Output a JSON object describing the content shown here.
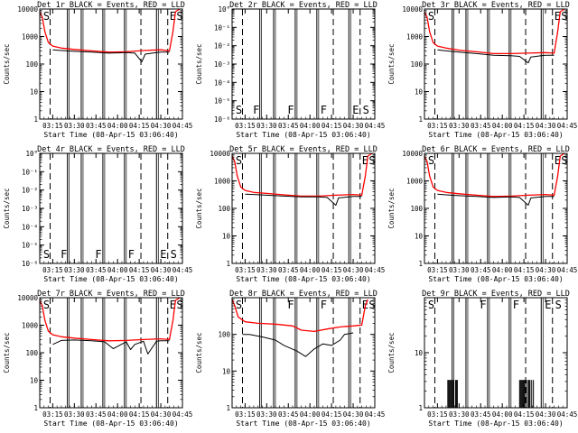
{
  "chart_data": [
    {
      "type": "line",
      "title": "Det 1r BLACK = Events, RED = LLD",
      "xlabel": "Start Time (08-Apr-15 03:06:40)",
      "ylabel": "Counts/sec",
      "yscale": "log",
      "ylim": [
        1,
        10000
      ],
      "xlim": [
        3.1,
        4.75
      ],
      "yticks": [
        "1",
        "10",
        "100",
        "1000",
        "10000"
      ],
      "xticks": [
        "03:15",
        "03:30",
        "03:45",
        "04:00",
        "04:15",
        "04:30",
        "04:45"
      ],
      "solid_markers": [
        3.42,
        3.58,
        3.83,
        4.08,
        4.45
      ],
      "dashed_markers": [
        3.22,
        4.27,
        4.58
      ],
      "segment_labels": [
        {
          "text": "S",
          "x": 3.12
        },
        {
          "text": "E",
          "x": 4.58
        },
        {
          "text": "S",
          "x": 4.66
        }
      ],
      "series": [
        {
          "name": "LLD",
          "color": "#ff0000",
          "x": [
            3.1,
            3.13,
            3.16,
            3.2,
            3.25,
            3.35,
            3.5,
            3.7,
            3.9,
            4.1,
            4.3,
            4.5,
            4.6,
            4.64,
            4.67,
            4.72
          ],
          "y": [
            8000,
            5000,
            1500,
            600,
            450,
            380,
            340,
            300,
            270,
            280,
            310,
            330,
            300,
            1500,
            8000,
            10000
          ]
        },
        {
          "name": "Events",
          "color": "#000000",
          "x": [
            3.25,
            3.35,
            3.5,
            3.7,
            3.9,
            4.1,
            4.2,
            4.28,
            4.32,
            4.45,
            4.5,
            4.6
          ],
          "y": [
            330,
            310,
            290,
            270,
            250,
            260,
            250,
            120,
            230,
            260,
            270,
            270
          ]
        }
      ]
    },
    {
      "type": "line",
      "title": "Det 2r BLACK = Events, RED = LLD",
      "xlabel": "Start Time (08-Apr-15 03:06:40)",
      "ylabel": "Counts/sec",
      "yscale": "log",
      "ylim": [
        1e-06,
        1
      ],
      "xlim": [
        3.1,
        4.75
      ],
      "yticks": [
        "10°",
        "10⁻¹",
        "10⁻²",
        "10⁻³",
        "10⁻⁴",
        "10⁻⁵",
        "10⁻⁶"
      ],
      "xticks": [
        "03:15",
        "03:30",
        "03:45",
        "04:00",
        "04:15",
        "04:30",
        "04:45"
      ],
      "solid_markers": [
        3.42,
        3.58,
        3.83,
        4.08,
        4.45
      ],
      "dashed_markers": [
        3.22,
        4.27,
        4.58
      ],
      "segment_labels": [
        {
          "text": "S",
          "x": 3.12
        },
        {
          "text": "F",
          "x": 3.32
        },
        {
          "text": "F",
          "x": 3.72
        },
        {
          "text": "F",
          "x": 4.1
        },
        {
          "text": "E",
          "x": 4.47
        },
        {
          "text": "S",
          "x": 4.59
        }
      ],
      "series": []
    },
    {
      "type": "line",
      "title": "Det 3r BLACK = Events, RED = LLD",
      "xlabel": "Start Time (08-Apr-15 03:06:40)",
      "ylabel": "Counts/sec",
      "yscale": "log",
      "ylim": [
        1,
        10000
      ],
      "xlim": [
        3.1,
        4.75
      ],
      "yticks": [
        "1",
        "10",
        "100",
        "1000",
        "10000"
      ],
      "xticks": [
        "03:15",
        "03:30",
        "03:45",
        "04:00",
        "04:15",
        "04:30",
        "04:45"
      ],
      "solid_markers": [
        3.42,
        3.58,
        3.83,
        4.08,
        4.45
      ],
      "dashed_markers": [
        3.22,
        4.27,
        4.58
      ],
      "segment_labels": [
        {
          "text": "S",
          "x": 3.12
        },
        {
          "text": "E",
          "x": 4.58
        },
        {
          "text": "S",
          "x": 4.66
        }
      ],
      "series": [
        {
          "name": "LLD",
          "color": "#ff0000",
          "x": [
            3.1,
            3.13,
            3.16,
            3.2,
            3.25,
            3.35,
            3.5,
            3.7,
            3.9,
            4.1,
            4.3,
            4.5,
            4.6,
            4.64,
            4.67,
            4.72
          ],
          "y": [
            8000,
            5000,
            1500,
            600,
            450,
            380,
            320,
            280,
            240,
            240,
            250,
            260,
            250,
            1500,
            8000,
            10000
          ]
        },
        {
          "name": "Events",
          "color": "#000000",
          "x": [
            3.25,
            3.35,
            3.5,
            3.7,
            3.9,
            4.1,
            4.2,
            4.3,
            4.33,
            4.45,
            4.5,
            4.6
          ],
          "y": [
            330,
            300,
            270,
            240,
            210,
            200,
            190,
            110,
            180,
            200,
            210,
            210
          ]
        }
      ]
    },
    {
      "type": "line",
      "title": "Det 4r BLACK = Events, RED = LLD",
      "xlabel": "Start Time (08-Apr-15 03:06:40)",
      "ylabel": "Counts/sec",
      "yscale": "log",
      "ylim": [
        1e-06,
        1
      ],
      "xlim": [
        3.1,
        4.75
      ],
      "yticks": [
        "10°",
        "10⁻¹",
        "10⁻²",
        "10⁻³",
        "10⁻⁴",
        "10⁻⁵",
        "10⁻⁶"
      ],
      "xticks": [
        "03:15",
        "03:30",
        "03:45",
        "04:00",
        "04:15",
        "04:30",
        "04:45"
      ],
      "solid_markers": [
        3.42,
        3.58,
        3.83,
        4.08,
        4.45
      ],
      "dashed_markers": [
        3.22,
        4.27,
        4.58
      ],
      "segment_labels": [
        {
          "text": "S",
          "x": 3.12
        },
        {
          "text": "F",
          "x": 3.32
        },
        {
          "text": "F",
          "x": 3.72
        },
        {
          "text": "F",
          "x": 4.1
        },
        {
          "text": "E",
          "x": 4.47
        },
        {
          "text": "S",
          "x": 4.59
        }
      ],
      "series": []
    },
    {
      "type": "line",
      "title": "Det 5r BLACK = Events, RED = LLD",
      "xlabel": "Start Time (08-Apr-15 03:06:40)",
      "ylabel": "Counts/sec",
      "yscale": "log",
      "ylim": [
        1,
        10000
      ],
      "xlim": [
        3.1,
        4.75
      ],
      "yticks": [
        "1",
        "10",
        "100",
        "1000",
        "10000"
      ],
      "xticks": [
        "03:15",
        "03:30",
        "03:45",
        "04:00",
        "04:15",
        "04:30",
        "04:45"
      ],
      "solid_markers": [
        3.42,
        3.58,
        3.83,
        4.08,
        4.45
      ],
      "dashed_markers": [
        3.22,
        4.27,
        4.58
      ],
      "segment_labels": [
        {
          "text": "S",
          "x": 3.12
        },
        {
          "text": "E",
          "x": 4.58
        },
        {
          "text": "S",
          "x": 4.66
        }
      ],
      "series": [
        {
          "name": "LLD",
          "color": "#ff0000",
          "x": [
            3.1,
            3.13,
            3.16,
            3.2,
            3.25,
            3.35,
            3.5,
            3.7,
            3.9,
            4.1,
            4.3,
            4.5,
            4.6,
            4.64,
            4.67,
            4.72
          ],
          "y": [
            8000,
            5000,
            1500,
            600,
            450,
            380,
            350,
            310,
            280,
            280,
            300,
            320,
            300,
            1500,
            8000,
            10000
          ]
        },
        {
          "name": "Events",
          "color": "#000000",
          "x": [
            3.25,
            3.35,
            3.5,
            3.7,
            3.9,
            4.1,
            4.2,
            4.3,
            4.33,
            4.45,
            4.5,
            4.6
          ],
          "y": [
            330,
            320,
            300,
            280,
            260,
            260,
            250,
            130,
            240,
            260,
            270,
            270
          ]
        }
      ]
    },
    {
      "type": "line",
      "title": "Det 6r BLACK = Events, RED = LLD",
      "xlabel": "Start Time (08-Apr-15 03:06:40)",
      "ylabel": "Counts/sec",
      "yscale": "log",
      "ylim": [
        1,
        10000
      ],
      "xlim": [
        3.1,
        4.75
      ],
      "yticks": [
        "1",
        "10",
        "100",
        "1000",
        "10000"
      ],
      "xticks": [
        "03:15",
        "03:30",
        "03:45",
        "04:00",
        "04:15",
        "04:30",
        "04:45"
      ],
      "solid_markers": [
        3.42,
        3.58,
        3.83,
        4.08,
        4.45
      ],
      "dashed_markers": [
        3.22,
        4.27,
        4.58
      ],
      "segment_labels": [
        {
          "text": "S",
          "x": 3.12
        },
        {
          "text": "E",
          "x": 4.58
        },
        {
          "text": "S",
          "x": 4.66
        }
      ],
      "series": [
        {
          "name": "LLD",
          "color": "#ff0000",
          "x": [
            3.1,
            3.13,
            3.16,
            3.2,
            3.25,
            3.35,
            3.5,
            3.7,
            3.9,
            4.1,
            4.3,
            4.5,
            4.6,
            4.64,
            4.67,
            4.72
          ],
          "y": [
            8000,
            5000,
            1500,
            600,
            450,
            380,
            340,
            300,
            270,
            280,
            300,
            320,
            300,
            1500,
            8000,
            10000
          ]
        },
        {
          "name": "Events",
          "color": "#000000",
          "x": [
            3.25,
            3.35,
            3.5,
            3.7,
            3.9,
            4.1,
            4.2,
            4.3,
            4.33,
            4.45,
            4.5,
            4.6
          ],
          "y": [
            330,
            310,
            290,
            270,
            250,
            260,
            250,
            130,
            240,
            260,
            270,
            270
          ]
        }
      ]
    },
    {
      "type": "line",
      "title": "Det 7r BLACK = Events, RED = LLD",
      "xlabel": "Start Time (08-Apr-15 03:06:40)",
      "ylabel": "Counts/sec",
      "yscale": "log",
      "ylim": [
        1,
        10000
      ],
      "xlim": [
        3.1,
        4.75
      ],
      "yticks": [
        "1",
        "10",
        "100",
        "1000",
        "10000"
      ],
      "xticks": [
        "03:15",
        "03:30",
        "03:45",
        "04:00",
        "04:15",
        "04:30",
        "04:45"
      ],
      "solid_markers": [
        3.42,
        3.58,
        3.83,
        4.08,
        4.45
      ],
      "dashed_markers": [
        3.22,
        4.27,
        4.58
      ],
      "segment_labels": [
        {
          "text": "S",
          "x": 3.12
        },
        {
          "text": "E",
          "x": 4.58
        },
        {
          "text": "S",
          "x": 4.66
        }
      ],
      "series": [
        {
          "name": "LLD",
          "color": "#ff0000",
          "x": [
            3.1,
            3.13,
            3.16,
            3.2,
            3.25,
            3.35,
            3.5,
            3.7,
            3.9,
            4.1,
            4.3,
            4.5,
            4.6,
            4.64,
            4.67,
            4.72
          ],
          "y": [
            8000,
            5000,
            1500,
            600,
            450,
            380,
            340,
            300,
            270,
            280,
            300,
            320,
            300,
            1500,
            8000,
            10000
          ]
        },
        {
          "name": "Events",
          "color": "#000000",
          "x": [
            3.25,
            3.35,
            3.5,
            3.7,
            3.85,
            3.95,
            4.1,
            4.15,
            4.2,
            4.3,
            4.35,
            4.45,
            4.5,
            4.6
          ],
          "y": [
            200,
            280,
            290,
            270,
            250,
            140,
            250,
            130,
            200,
            260,
            90,
            260,
            270,
            270
          ]
        }
      ]
    },
    {
      "type": "line",
      "title": "Det 8r BLACK = Events, RED = LLD",
      "xlabel": "Start Time (08-Apr-15 03:06:40)",
      "ylabel": "Counts/sec",
      "yscale": "log",
      "ylim": [
        1,
        1000
      ],
      "xlim": [
        3.1,
        4.75
      ],
      "yticks": [
        "1",
        "10",
        "100"
      ],
      "xticks": [
        "03:15",
        "03:30",
        "03:45",
        "04:00",
        "04:15",
        "04:30",
        "04:45"
      ],
      "solid_markers": [
        3.42,
        3.58,
        3.83,
        4.08,
        4.45
      ],
      "dashed_markers": [
        3.22,
        4.27,
        4.58
      ],
      "segment_labels": [
        {
          "text": "S",
          "x": 3.12
        },
        {
          "text": "F",
          "x": 3.72
        },
        {
          "text": "F",
          "x": 4.1
        },
        {
          "text": "E",
          "x": 4.58
        },
        {
          "text": "S",
          "x": 4.66
        }
      ],
      "series": [
        {
          "name": "LLD",
          "color": "#ff0000",
          "x": [
            3.1,
            3.13,
            3.17,
            3.25,
            3.4,
            3.6,
            3.8,
            3.9,
            4.05,
            4.2,
            4.35,
            4.5,
            4.6,
            4.64,
            4.67
          ],
          "y": [
            900,
            600,
            300,
            220,
            200,
            190,
            170,
            130,
            120,
            140,
            160,
            170,
            180,
            600,
            900
          ]
        },
        {
          "name": "Events",
          "color": "#000000",
          "x": [
            3.22,
            3.3,
            3.45,
            3.6,
            3.7,
            3.85,
            3.95,
            4.05,
            4.15,
            4.25,
            4.35,
            4.4,
            4.5
          ],
          "y": [
            100,
            100,
            85,
            70,
            50,
            35,
            25,
            40,
            55,
            50,
            70,
            100,
            110
          ]
        }
      ]
    },
    {
      "type": "bar",
      "title": "Det 9r BLACK = Events, RED = LLD",
      "xlabel": "Start Time (08-Apr-15 03:06:40)",
      "ylabel": "Counts/sec",
      "yscale": "log",
      "ylim": [
        1,
        100
      ],
      "xlim": [
        3.1,
        4.75
      ],
      "yticks": [
        "1",
        "10"
      ],
      "xticks": [
        "03:15",
        "03:30",
        "03:45",
        "04:00",
        "04:15",
        "04:30",
        "04:45"
      ],
      "solid_markers": [
        3.42,
        3.58,
        3.83,
        4.08,
        4.45
      ],
      "dashed_markers": [
        3.22,
        4.27,
        4.58
      ],
      "segment_labels": [
        {
          "text": "S",
          "x": 3.12
        },
        {
          "text": "F",
          "x": 3.72
        },
        {
          "text": "F",
          "x": 4.1
        },
        {
          "text": "E",
          "x": 4.47
        },
        {
          "text": "S",
          "x": 4.59
        }
      ],
      "spikes": {
        "value": 3.2,
        "x": [
          3.37,
          3.38,
          3.39,
          3.4,
          3.41,
          3.43,
          3.44,
          3.46,
          3.47,
          3.48,
          4.2,
          4.21,
          4.22,
          4.23,
          4.24,
          4.25,
          4.26,
          4.28,
          4.3,
          4.31,
          4.32,
          4.34,
          4.36
        ]
      },
      "series": []
    }
  ]
}
